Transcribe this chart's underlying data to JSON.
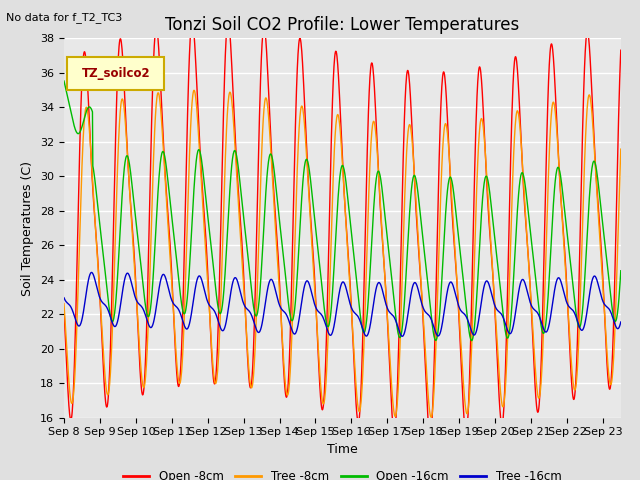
{
  "title": "Tonzi Soil CO2 Profile: Lower Temperatures",
  "subtitle": "No data for f_T2_TC3",
  "ylabel": "Soil Temperatures (C)",
  "xlabel": "Time",
  "legend_label": "TZ_soilco2",
  "ylim": [
    16,
    38
  ],
  "series_labels": [
    "Open -8cm",
    "Tree -8cm",
    "Open -16cm",
    "Tree -16cm"
  ],
  "series_colors": [
    "#ff0000",
    "#ff9900",
    "#00bb00",
    "#0000cc"
  ],
  "xtick_labels": [
    "Sep 8",
    "Sep 9",
    "Sep 10",
    "Sep 11",
    "Sep 12",
    "Sep 13",
    "Sep 14",
    "Sep 15",
    "Sep 16",
    "Sep 17",
    "Sep 18",
    "Sep 19",
    "Sep 20",
    "Sep 21",
    "Sep 22",
    "Sep 23"
  ],
  "bg_color": "#e0e0e0",
  "plot_bg": "#e8e8e8",
  "n_days": 15.5,
  "samples_per_day": 96,
  "title_fontsize": 12,
  "axis_fontsize": 9,
  "tick_fontsize": 8
}
